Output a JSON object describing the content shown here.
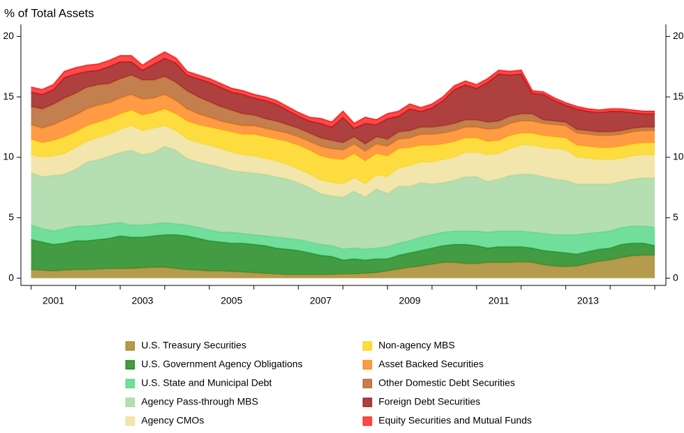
{
  "chart_data": {
    "type": "area",
    "stacked": true,
    "y_label": "% of Total Assets",
    "x": [
      2001,
      2001.25,
      2001.5,
      2001.75,
      2002,
      2002.25,
      2002.5,
      2002.75,
      2003,
      2003.25,
      2003.5,
      2003.75,
      2004,
      2004.25,
      2004.5,
      2004.75,
      2005,
      2005.25,
      2005.5,
      2005.75,
      2006,
      2006.25,
      2006.5,
      2006.75,
      2007,
      2007.25,
      2007.5,
      2007.75,
      2008,
      2008.25,
      2008.5,
      2008.75,
      2009,
      2009.25,
      2009.5,
      2009.75,
      2010,
      2010.25,
      2010.5,
      2010.75,
      2011,
      2011.25,
      2011.5,
      2011.75,
      2012,
      2012.25,
      2012.5,
      2012.75,
      2013,
      2013.25,
      2013.5,
      2013.75,
      2014,
      2014.25,
      2014.5,
      2014.75,
      2015
    ],
    "xlim": [
      2000.77,
      2015.25
    ],
    "xticks": [
      {
        "value": 2001.5,
        "label": "2001"
      },
      {
        "value": 2003.5,
        "label": "2003"
      },
      {
        "value": 2005.5,
        "label": "2005"
      },
      {
        "value": 2007.5,
        "label": "2007"
      },
      {
        "value": 2009.5,
        "label": "2009"
      },
      {
        "value": 2011.5,
        "label": "2011"
      },
      {
        "value": 2013.5,
        "label": "2013"
      }
    ],
    "xminor_ticks": [
      2001,
      2002,
      2003,
      2004,
      2005,
      2006,
      2007,
      2008,
      2009,
      2010,
      2011,
      2012,
      2013,
      2014,
      2015
    ],
    "ylim": [
      -0.6,
      21
    ],
    "yticks": [
      0,
      5,
      10,
      15,
      20
    ],
    "right_axis": true,
    "legend_columns": 2,
    "series": [
      {
        "name": "U.S. Treasury Securities",
        "color": "#a88a2e",
        "values": [
          0.7,
          0.65,
          0.6,
          0.65,
          0.7,
          0.7,
          0.75,
          0.8,
          0.8,
          0.8,
          0.85,
          0.9,
          0.9,
          0.8,
          0.7,
          0.65,
          0.6,
          0.6,
          0.55,
          0.5,
          0.45,
          0.4,
          0.35,
          0.3,
          0.3,
          0.3,
          0.3,
          0.3,
          0.35,
          0.35,
          0.4,
          0.45,
          0.6,
          0.75,
          0.9,
          1.0,
          1.15,
          1.3,
          1.3,
          1.2,
          1.2,
          1.3,
          1.3,
          1.3,
          1.35,
          1.3,
          1.1,
          1.0,
          0.95,
          1.0,
          1.2,
          1.4,
          1.5,
          1.7,
          1.85,
          1.9,
          1.9
        ]
      },
      {
        "name": "U.S. Government Agency Obligations",
        "color": "#228b22",
        "values": [
          2.5,
          2.35,
          2.2,
          2.25,
          2.4,
          2.4,
          2.45,
          2.5,
          2.7,
          2.6,
          2.55,
          2.6,
          2.7,
          2.8,
          2.8,
          2.65,
          2.5,
          2.4,
          2.35,
          2.4,
          2.35,
          2.3,
          2.15,
          2.1,
          2.0,
          1.8,
          1.6,
          1.5,
          1.15,
          1.25,
          1.1,
          1.15,
          1.0,
          1.15,
          1.2,
          1.3,
          1.35,
          1.4,
          1.5,
          1.6,
          1.5,
          1.2,
          1.3,
          1.3,
          1.25,
          1.2,
          1.2,
          1.2,
          1.15,
          1.0,
          1.0,
          1.0,
          1.0,
          1.1,
          1.05,
          1.0,
          0.8
        ]
      },
      {
        "name": "U.S. State and Municipal Debt",
        "color": "#58d98a",
        "values": [
          1.2,
          1.1,
          1.1,
          1.2,
          1.2,
          1.2,
          1.2,
          1.2,
          1.1,
          1.0,
          1.0,
          1.0,
          1.0,
          0.9,
          0.9,
          0.9,
          0.9,
          0.8,
          0.9,
          0.8,
          0.8,
          0.8,
          0.9,
          0.9,
          0.9,
          0.9,
          0.9,
          0.9,
          0.9,
          0.9,
          0.9,
          0.9,
          1.0,
          1.0,
          1.0,
          1.1,
          1.1,
          1.1,
          1.1,
          1.1,
          1.2,
          1.3,
          1.3,
          1.3,
          1.3,
          1.3,
          1.4,
          1.4,
          1.5,
          1.6,
          1.5,
          1.4,
          1.4,
          1.4,
          1.4,
          1.4,
          1.5
        ]
      },
      {
        "name": "Agency Pass-through MBS",
        "color": "#a8d8a4",
        "values": [
          4.3,
          4.3,
          4.6,
          4.5,
          4.7,
          5.3,
          5.4,
          5.6,
          5.8,
          6.2,
          5.8,
          5.9,
          6.3,
          6.1,
          5.5,
          5.4,
          5.4,
          5.4,
          5.1,
          5.1,
          5.1,
          5.1,
          5.0,
          4.9,
          4.7,
          4.5,
          4.2,
          4.1,
          4.3,
          4.7,
          4.3,
          4.9,
          4.4,
          4.7,
          4.5,
          4.5,
          4.2,
          4.1,
          4.2,
          4.5,
          4.5,
          4.2,
          4.3,
          4.6,
          4.7,
          4.8,
          4.7,
          4.6,
          4.5,
          4.2,
          4.1,
          4.0,
          3.9,
          3.8,
          3.9,
          4.0,
          4.1
        ]
      },
      {
        "name": "Agency CMOs",
        "color": "#f0e29e",
        "values": [
          1.5,
          1.6,
          1.6,
          1.7,
          1.8,
          1.7,
          1.8,
          1.8,
          1.9,
          2.0,
          2.0,
          2.0,
          1.7,
          1.6,
          1.6,
          1.6,
          1.6,
          1.5,
          1.5,
          1.4,
          1.4,
          1.3,
          1.3,
          1.2,
          1.1,
          1.1,
          1.1,
          1.1,
          1.1,
          1.1,
          1.1,
          1.1,
          1.4,
          1.5,
          1.7,
          1.7,
          1.8,
          1.9,
          1.9,
          2.0,
          2.0,
          2.2,
          2.1,
          2.2,
          2.4,
          2.4,
          2.4,
          2.5,
          2.5,
          2.2,
          2.1,
          2.0,
          2.0,
          1.9,
          1.9,
          1.9,
          1.9
        ]
      },
      {
        "name": "Non-agency MBS",
        "color": "#fcd61c",
        "values": [
          1.3,
          1.2,
          1.3,
          1.4,
          1.3,
          1.3,
          1.3,
          1.3,
          1.3,
          1.3,
          1.3,
          1.3,
          1.4,
          1.4,
          1.5,
          1.5,
          1.5,
          1.6,
          1.7,
          1.7,
          1.8,
          1.8,
          1.8,
          1.9,
          2.0,
          2.0,
          2.0,
          2.0,
          2.0,
          2.0,
          1.9,
          1.8,
          1.7,
          1.6,
          1.5,
          1.4,
          1.4,
          1.3,
          1.3,
          1.2,
          1.2,
          1.1,
          1.1,
          1.1,
          1.0,
          1.0,
          1.0,
          1.0,
          1.0,
          1.0,
          1.0,
          1.0,
          1.0,
          1.0,
          1.0,
          1.0,
          1.0
        ]
      },
      {
        "name": "Asset Backed Securities",
        "color": "#ff8a24",
        "values": [
          1.2,
          1.2,
          1.3,
          1.4,
          1.4,
          1.4,
          1.4,
          1.3,
          1.3,
          1.3,
          1.3,
          1.2,
          1.2,
          1.1,
          1.0,
          0.9,
          0.8,
          0.7,
          0.7,
          0.7,
          0.7,
          0.7,
          0.7,
          0.7,
          0.7,
          0.7,
          0.8,
          0.8,
          0.8,
          0.8,
          0.8,
          0.8,
          0.8,
          0.8,
          0.8,
          0.9,
          0.9,
          0.9,
          0.9,
          0.9,
          0.9,
          1.0,
          1.0,
          1.0,
          1.0,
          1.0,
          1.0,
          1.0,
          1.0,
          1.0,
          1.0,
          1.0,
          1.0,
          1.0,
          1.0,
          1.0,
          1.0
        ]
      },
      {
        "name": "Other Domestic Debt Securities",
        "color": "#b8692e",
        "values": [
          1.5,
          1.6,
          1.7,
          1.8,
          1.8,
          1.8,
          1.7,
          1.6,
          1.6,
          1.6,
          1.6,
          1.5,
          1.5,
          1.5,
          1.5,
          1.4,
          1.3,
          1.2,
          1.1,
          1.0,
          0.9,
          0.8,
          0.8,
          0.7,
          0.7,
          0.7,
          0.7,
          0.7,
          0.6,
          0.6,
          0.6,
          0.6,
          0.6,
          0.6,
          0.6,
          0.6,
          0.6,
          0.6,
          0.6,
          0.6,
          0.6,
          0.6,
          0.6,
          0.6,
          0.6,
          0.6,
          0.3,
          0.3,
          0.3,
          0.3,
          0.3,
          0.3,
          0.3,
          0.3,
          0.3,
          0.3,
          0.3
        ]
      },
      {
        "name": "Foreign Debt Securities",
        "color": "#a01e1e",
        "values": [
          1.2,
          1.2,
          1.2,
          1.7,
          1.6,
          1.3,
          1.2,
          1.4,
          1.4,
          1.1,
          0.8,
          1.3,
          1.5,
          1.6,
          1.3,
          1.5,
          1.6,
          1.6,
          1.5,
          1.6,
          1.4,
          1.5,
          1.4,
          1.2,
          1.0,
          1.0,
          1.2,
          1.1,
          2.1,
          0.7,
          1.7,
          1.0,
          1.7,
          1.3,
          1.8,
          1.3,
          1.6,
          2.1,
          2.8,
          2.9,
          2.6,
          3.3,
          3.9,
          3.4,
          3.3,
          1.7,
          2.1,
          1.7,
          1.4,
          1.7,
          1.6,
          1.6,
          1.7,
          1.6,
          1.3,
          1.1,
          1.1
        ]
      },
      {
        "name": "Equity Securities and Mutual Funds",
        "color": "#ff2a2a",
        "values": [
          0.4,
          0.4,
          0.4,
          0.5,
          0.5,
          0.5,
          0.5,
          0.5,
          0.5,
          0.5,
          0.4,
          0.5,
          0.5,
          0.4,
          0.3,
          0.3,
          0.3,
          0.3,
          0.3,
          0.3,
          0.3,
          0.3,
          0.3,
          0.3,
          0.3,
          0.3,
          0.4,
          0.4,
          0.5,
          0.4,
          0.5,
          0.4,
          0.4,
          0.4,
          0.4,
          0.3,
          0.3,
          0.3,
          0.3,
          0.3,
          0.3,
          0.3,
          0.3,
          0.3,
          0.3,
          0.2,
          0.2,
          0.2,
          0.2,
          0.2,
          0.2,
          0.2,
          0.2,
          0.2,
          0.2,
          0.2,
          0.2
        ]
      }
    ]
  }
}
